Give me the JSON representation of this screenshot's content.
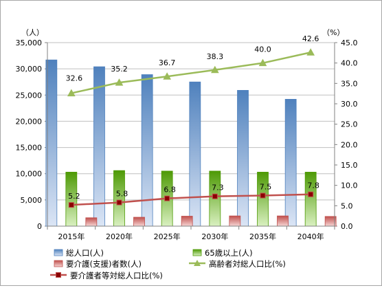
{
  "chart_data": {
    "type": "bar",
    "categories": [
      "2015年",
      "2020年",
      "2025年",
      "2030年",
      "2035年",
      "2040年"
    ],
    "left_axis": {
      "unit": "（人）",
      "min": 0,
      "max": 35000,
      "step": 5000,
      "ticks": [
        "0",
        "5,000",
        "10,000",
        "15,000",
        "20,000",
        "25,000",
        "30,000",
        "35,000"
      ]
    },
    "right_axis": {
      "unit": "（%）",
      "min": 0,
      "max": 45,
      "step": 5,
      "ticks": [
        "0.0",
        "5.0",
        "10.0",
        "15.0",
        "20.0",
        "25.0",
        "30.0",
        "35.0",
        "40.0",
        "45.0"
      ]
    },
    "series": [
      {
        "name": "総人口(人)",
        "kind": "bar",
        "axis": "left",
        "color": "#4f81bd",
        "light": "#dbe5f5",
        "values": [
          31700,
          30400,
          28900,
          27500,
          25900,
          24200
        ]
      },
      {
        "name": "65歳以上(人)",
        "kind": "bar",
        "axis": "left",
        "color": "#4e9a06",
        "light": "#d9f0c0",
        "values": [
          10300,
          10600,
          10500,
          10500,
          10300,
          10300
        ]
      },
      {
        "name": "要介護(支援)者数(人)",
        "kind": "bar",
        "axis": "left",
        "color": "#c0504d",
        "light": "#f6d5d4",
        "values": [
          1600,
          1700,
          1900,
          1950,
          1950,
          1850
        ]
      },
      {
        "name": "高齢者対総人口比(%)",
        "kind": "line",
        "axis": "right",
        "color": "#9bbb59",
        "marker": "triangle",
        "values": [
          32.6,
          35.2,
          36.7,
          38.3,
          40.0,
          42.6
        ],
        "labels": [
          "32.6",
          "35.2",
          "36.7",
          "38.3",
          "40.0",
          "42.6"
        ]
      },
      {
        "name": "要介護者等対総人口比(%)",
        "kind": "line",
        "axis": "right",
        "color": "#c0504d",
        "marker": "square",
        "values": [
          5.2,
          5.8,
          6.8,
          7.3,
          7.5,
          7.8
        ],
        "labels": [
          "5.2",
          "5.8",
          "6.8",
          "7.3",
          "7.5",
          "7.8"
        ]
      }
    ],
    "grid": true,
    "legend_position": "bottom"
  }
}
